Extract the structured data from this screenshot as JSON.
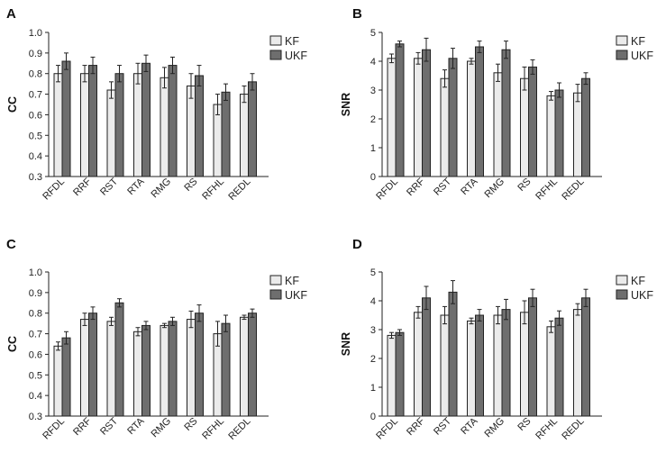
{
  "figure": {
    "series_names": [
      "KF",
      "UKF"
    ],
    "series_colors": [
      "#ebebeb",
      "#6e6e6e"
    ]
  },
  "chart_data": [
    {
      "panel": "A",
      "type": "bar",
      "ylabel": "CC",
      "ylim": [
        0.3,
        1.0
      ],
      "yticks": [
        "0.3",
        "0.4",
        "0.5",
        "0.6",
        "0.7",
        "0.8",
        "0.9",
        "1.0"
      ],
      "categories": [
        "RFDL",
        "RRF",
        "RST",
        "RTA",
        "RMG",
        "RS",
        "RFHL",
        "REDL"
      ],
      "series": [
        {
          "name": "KF",
          "values": [
            0.8,
            0.8,
            0.72,
            0.8,
            0.78,
            0.74,
            0.65,
            0.7
          ],
          "errors": [
            0.04,
            0.04,
            0.04,
            0.05,
            0.05,
            0.06,
            0.05,
            0.04
          ]
        },
        {
          "name": "UKF",
          "values": [
            0.86,
            0.84,
            0.8,
            0.85,
            0.84,
            0.79,
            0.71,
            0.76
          ],
          "errors": [
            0.04,
            0.04,
            0.04,
            0.04,
            0.04,
            0.05,
            0.04,
            0.04
          ]
        }
      ]
    },
    {
      "panel": "B",
      "type": "bar",
      "ylabel": "SNR",
      "ylim": [
        0,
        5
      ],
      "yticks": [
        "0",
        "1",
        "2",
        "3",
        "4",
        "5"
      ],
      "categories": [
        "RFDL",
        "RRF",
        "RST",
        "RTA",
        "RMG",
        "RS",
        "RFHL",
        "REDL"
      ],
      "series": [
        {
          "name": "KF",
          "values": [
            4.1,
            4.1,
            3.4,
            4.0,
            3.6,
            3.4,
            2.8,
            2.9
          ],
          "errors": [
            0.15,
            0.2,
            0.3,
            0.1,
            0.3,
            0.4,
            0.15,
            0.3
          ]
        },
        {
          "name": "UKF",
          "values": [
            4.6,
            4.4,
            4.1,
            4.5,
            4.4,
            3.8,
            3.0,
            3.4
          ],
          "errors": [
            0.1,
            0.4,
            0.35,
            0.2,
            0.3,
            0.25,
            0.25,
            0.2
          ]
        }
      ]
    },
    {
      "panel": "C",
      "type": "bar",
      "ylabel": "CC",
      "ylim": [
        0.3,
        1.0
      ],
      "yticks": [
        "0.3",
        "0.4",
        "0.5",
        "0.6",
        "0.7",
        "0.8",
        "0.9",
        "1.0"
      ],
      "categories": [
        "RFDL",
        "RRF",
        "RST",
        "RTA",
        "RMG",
        "RS",
        "RFHL",
        "REDL"
      ],
      "series": [
        {
          "name": "KF",
          "values": [
            0.64,
            0.77,
            0.76,
            0.71,
            0.74,
            0.77,
            0.7,
            0.78
          ],
          "errors": [
            0.02,
            0.03,
            0.02,
            0.02,
            0.01,
            0.04,
            0.06,
            0.01
          ]
        },
        {
          "name": "UKF",
          "values": [
            0.68,
            0.8,
            0.85,
            0.74,
            0.76,
            0.8,
            0.75,
            0.8
          ],
          "errors": [
            0.03,
            0.03,
            0.02,
            0.02,
            0.02,
            0.04,
            0.04,
            0.02
          ]
        }
      ]
    },
    {
      "panel": "D",
      "type": "bar",
      "ylabel": "SNR",
      "ylim": [
        0,
        5
      ],
      "yticks": [
        "0",
        "1",
        "2",
        "3",
        "4",
        "5"
      ],
      "categories": [
        "RFDL",
        "RRF",
        "RST",
        "RTA",
        "RMG",
        "RS",
        "RFHL",
        "REDL"
      ],
      "series": [
        {
          "name": "KF",
          "values": [
            2.8,
            3.6,
            3.5,
            3.3,
            3.5,
            3.6,
            3.1,
            3.7
          ],
          "errors": [
            0.1,
            0.2,
            0.3,
            0.1,
            0.3,
            0.4,
            0.2,
            0.2
          ]
        },
        {
          "name": "UKF",
          "values": [
            2.9,
            4.1,
            4.3,
            3.5,
            3.7,
            4.1,
            3.4,
            4.1
          ],
          "errors": [
            0.1,
            0.4,
            0.4,
            0.2,
            0.35,
            0.3,
            0.25,
            0.3
          ]
        }
      ]
    }
  ]
}
